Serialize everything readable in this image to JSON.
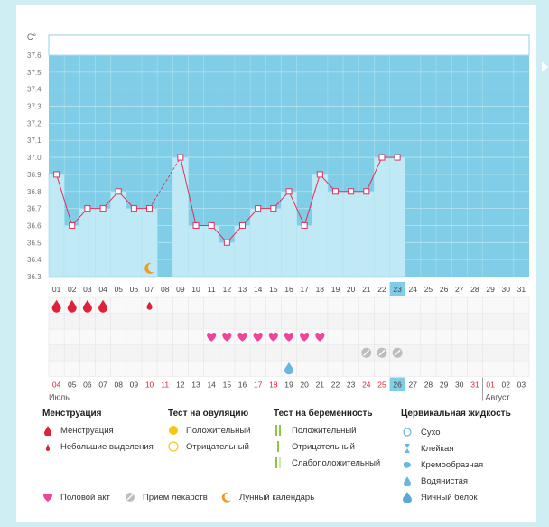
{
  "chart_data": {
    "type": "line",
    "unit_label": "C°",
    "ylim": [
      36.3,
      37.6
    ],
    "yticks": [
      "36.3",
      "36.4",
      "36.5",
      "36.6",
      "36.7",
      "36.8",
      "36.9",
      "37.0",
      "37.1",
      "37.2",
      "37.3",
      "37.4",
      "37.5",
      "37.6"
    ],
    "cycle_days": [
      "01",
      "02",
      "03",
      "04",
      "05",
      "06",
      "07",
      "08",
      "09",
      "10",
      "11",
      "12",
      "13",
      "14",
      "15",
      "16",
      "17",
      "18",
      "19",
      "20",
      "21",
      "22",
      "23",
      "24",
      "25",
      "26",
      "27",
      "28",
      "29",
      "30",
      "31"
    ],
    "temps": [
      36.9,
      36.6,
      36.7,
      36.7,
      36.8,
      36.7,
      36.7,
      null,
      37.0,
      36.6,
      36.6,
      36.5,
      36.6,
      36.7,
      36.7,
      36.8,
      36.6,
      36.9,
      36.8,
      36.8,
      36.8,
      37.0,
      37.0,
      null,
      null,
      null,
      null,
      null,
      null,
      null,
      null
    ],
    "dashed_gap": [
      7,
      9
    ],
    "highlight_day": "23",
    "dates": [
      "04",
      "05",
      "06",
      "07",
      "08",
      "09",
      "10",
      "11",
      "12",
      "13",
      "14",
      "15",
      "16",
      "17",
      "18",
      "19",
      "20",
      "21",
      "22",
      "23",
      "24",
      "25",
      "26",
      "27",
      "28",
      "29",
      "30",
      "31",
      "01",
      "02",
      "03"
    ],
    "red_dates": [
      "04",
      "10",
      "11",
      "17",
      "18",
      "24",
      "25",
      "31",
      "01"
    ],
    "highlight_date": "26",
    "month_start": "Июль",
    "month_next": "Август",
    "colors": {
      "fill": "#bfe9f5",
      "bg": "#7fcde6",
      "line": "#e0305e",
      "menses": "#e0213b",
      "heart": "#f0439b",
      "pill": "#bdbdbd",
      "moon": "#f09a1e",
      "drop": "#6bb6e0"
    }
  },
  "markers": {
    "menstruation_days": [
      0,
      1,
      2,
      3
    ],
    "light_spotting_days": [
      6
    ],
    "intercourse_days": [
      10,
      11,
      12,
      13,
      14,
      15,
      16,
      17
    ],
    "medication_days": [
      20,
      21,
      22
    ],
    "lunar_day": 6,
    "egg_white_day": 15
  },
  "legend": {
    "menses_title": "Менструация",
    "menses_item": "Менструация",
    "spotting_item": "Небольшие выделения",
    "ovul_title": "Тест на овуляцию",
    "ovul_pos": "Положительный",
    "ovul_neg": "Отрицательный",
    "preg_title": "Тест на беременность",
    "preg_pos": "Положительный",
    "preg_neg": "Отрицательный",
    "preg_weak": "Слабоположительный",
    "cerv_title": "Цервикальная жидкость",
    "cerv_dry": "Сухо",
    "cerv_sticky": "Клейкая",
    "cerv_creamy": "Кремообразная",
    "cerv_watery": "Водянистая",
    "cerv_egg": "Яичный белок",
    "intercourse": "Половой акт",
    "medication": "Прием лекарств",
    "lunar": "Лунный календарь"
  }
}
